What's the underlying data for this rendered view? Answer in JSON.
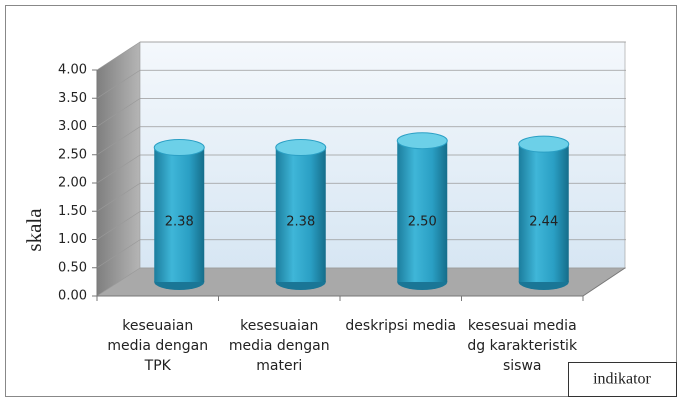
{
  "chart_data": {
    "type": "bar3d-cylinder",
    "categories": [
      "keseuaian media dengan TPK",
      "kesesuaian media dengan materi",
      "deskripsi media",
      "kesesuai media dg karakteristik siswa"
    ],
    "values": [
      2.38,
      2.38,
      2.5,
      2.44
    ],
    "value_labels": [
      "2.38",
      "2.38",
      "2.50",
      "2.44"
    ],
    "color": "#31a6c9",
    "ylim": [
      0,
      4
    ],
    "yticks": [
      {
        "value": 0,
        "label": "0.00"
      },
      {
        "value": 0.5,
        "label": "0.50"
      },
      {
        "value": 1,
        "label": "1.00"
      },
      {
        "value": 1.5,
        "label": "1.50"
      },
      {
        "value": 2,
        "label": "2.00"
      },
      {
        "value": 2.5,
        "label": "2.50"
      },
      {
        "value": 3,
        "label": "3.00"
      },
      {
        "value": 3.5,
        "label": "3.50"
      },
      {
        "value": 4,
        "label": "4.00"
      }
    ],
    "ylabel": "skala",
    "xlabel": "indikator",
    "grid": true
  }
}
